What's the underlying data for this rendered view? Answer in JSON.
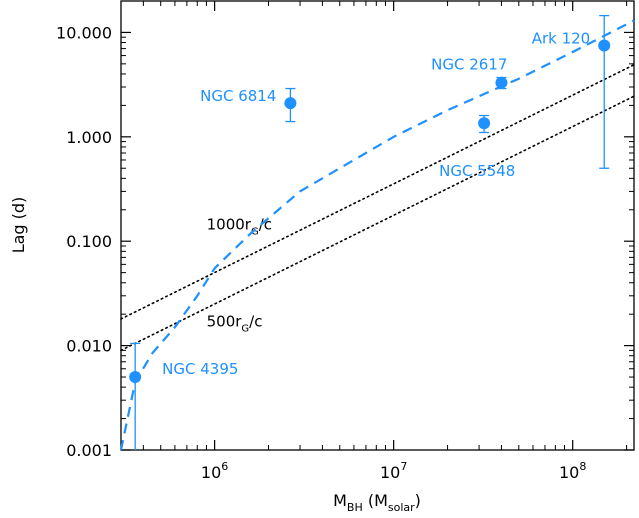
{
  "chart_data": {
    "type": "scatter",
    "title": "",
    "xlabel": {
      "main": "M",
      "sub": "BH",
      "paren_open": " (M",
      "paren_sub": "solar",
      "paren_close": ")"
    },
    "ylabel": "Lag (d)",
    "xscale": "log",
    "yscale": "log",
    "xlim": [
      300000,
      220000000
    ],
    "ylim": [
      0.001,
      20
    ],
    "x_ticks": [
      {
        "value": 1000000,
        "base": "10",
        "exp": "6"
      },
      {
        "value": 10000000,
        "base": "10",
        "exp": "7"
      },
      {
        "value": 100000000,
        "base": "10",
        "exp": "8"
      }
    ],
    "y_ticks": [
      {
        "value": 0.001,
        "label": "0.001"
      },
      {
        "value": 0.01,
        "label": "0.010"
      },
      {
        "value": 0.1,
        "label": "0.100"
      },
      {
        "value": 1,
        "label": "1.000"
      },
      {
        "value": 10,
        "label": "10.000"
      }
    ],
    "points": [
      {
        "name": "NGC 4395",
        "x": 360000,
        "y": 0.005,
        "yerr_low": 0.001,
        "yerr_high": 0.0105,
        "label_anchor": "right"
      },
      {
        "name": "NGC 6814",
        "x": 2650000,
        "y": 2.1,
        "yerr_low": 1.4,
        "yerr_high": 2.9,
        "label_anchor": "left"
      },
      {
        "name": "NGC 5548",
        "x": 32000000,
        "y": 1.35,
        "yerr_low": 1.1,
        "yerr_high": 1.6,
        "label_anchor": "below"
      },
      {
        "name": "NGC 2617",
        "x": 40000000,
        "y": 3.3,
        "yerr_low": 2.9,
        "yerr_high": 3.7,
        "label_anchor": "above-left"
      },
      {
        "name": "Ark 120",
        "x": 150000000,
        "y": 7.5,
        "yerr_low": 0.5,
        "yerr_high": 14.5,
        "label_anchor": "left"
      }
    ],
    "reference_lines": [
      {
        "label_main": "1000r",
        "label_sub": "G",
        "label_tail": "/c",
        "style": "dotted",
        "x": [
          300000,
          220000000
        ],
        "y": [
          0.018,
          4.9
        ],
        "label_x": 1000000,
        "label_y": 0.145
      },
      {
        "label_main": "500r",
        "label_sub": "G",
        "label_tail": "/c",
        "style": "dotted",
        "x": [
          300000,
          220000000
        ],
        "y": [
          0.009,
          2.45
        ],
        "label_x": 1000000,
        "label_y": 0.017
      }
    ],
    "model_curve": {
      "style": "dashed",
      "points": [
        [
          300000,
          0.001
        ],
        [
          360000,
          0.0045
        ],
        [
          450000,
          0.0085
        ],
        [
          600000,
          0.015
        ],
        [
          800000,
          0.03
        ],
        [
          1000000,
          0.055
        ],
        [
          1600000,
          0.12
        ],
        [
          3000000,
          0.3
        ],
        [
          6000000,
          0.6
        ],
        [
          10000000,
          1.0
        ],
        [
          20000000,
          1.8
        ],
        [
          50000000,
          3.6
        ],
        [
          100000000,
          6.5
        ],
        [
          220000000,
          13
        ]
      ]
    },
    "grid": false,
    "legend": "none",
    "colors": {
      "points": "#1e90ff",
      "curve": "#1e90ff",
      "reference": "#000000",
      "axes": "#000000"
    }
  }
}
